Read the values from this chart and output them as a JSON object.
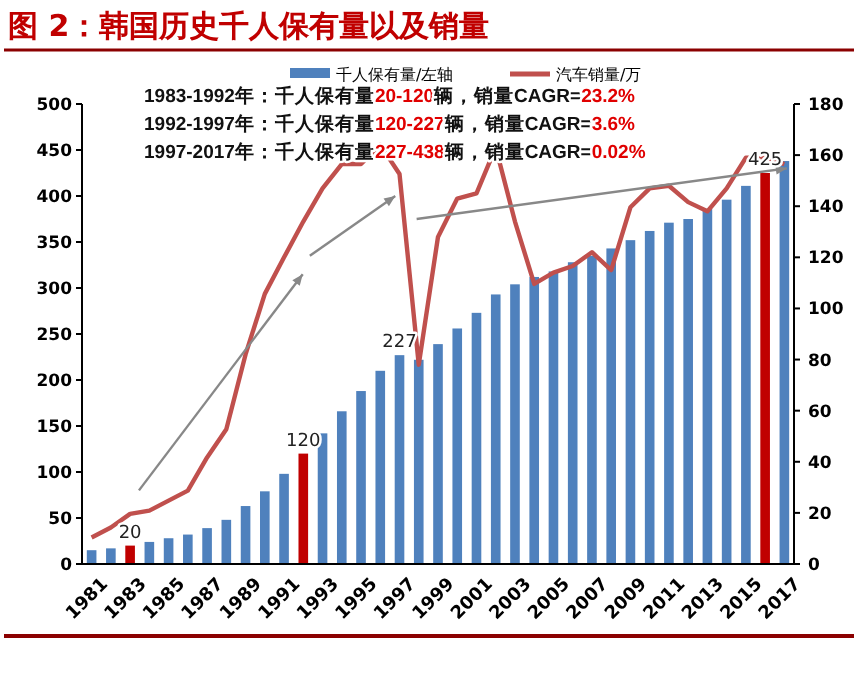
{
  "chart_data": {
    "type": "bar",
    "title": "图 2：韩国历史千人保有量以及销量",
    "categories": [
      "1981",
      null,
      "1983",
      null,
      "1985",
      null,
      "1987",
      null,
      "1989",
      null,
      "1991",
      null,
      "1993",
      null,
      "1995",
      null,
      "1997",
      null,
      "1999",
      null,
      "2001",
      null,
      "2003",
      null,
      "2005",
      null,
      "2007",
      null,
      "2009",
      null,
      "2011",
      null,
      "2013",
      null,
      "2015",
      null,
      "2017"
    ],
    "series": [
      {
        "name": "千人保有量/左轴",
        "color": "#4f81bd",
        "colors": [
          "#4f81bd",
          "#4f81bd",
          "#c00000",
          "#4f81bd",
          "#4f81bd",
          "#4f81bd",
          "#4f81bd",
          "#4f81bd",
          "#4f81bd",
          "#4f81bd",
          "#4f81bd",
          "#c00000",
          "#4f81bd",
          "#4f81bd",
          "#4f81bd",
          "#4f81bd",
          "#4f81bd",
          "#4f81bd",
          "#4f81bd",
          "#4f81bd",
          "#4f81bd",
          "#4f81bd",
          "#4f81bd",
          "#4f81bd",
          "#4f81bd",
          "#4f81bd",
          "#4f81bd",
          "#4f81bd",
          "#4f81bd",
          "#4f81bd",
          "#4f81bd",
          "#4f81bd",
          "#4f81bd",
          "#4f81bd",
          "#4f81bd",
          "#c00000",
          "#4f81bd"
        ],
        "values": [
          15,
          17,
          20,
          24,
          28,
          32,
          39,
          48,
          63,
          79,
          98,
          120,
          142,
          166,
          188,
          210,
          227,
          222,
          239,
          256,
          273,
          293,
          304,
          312,
          318,
          328,
          335,
          343,
          352,
          362,
          371,
          375,
          386,
          396,
          411,
          425,
          438
        ],
        "value_labels": [
          null,
          null,
          "20",
          null,
          null,
          null,
          null,
          null,
          null,
          null,
          null,
          "120",
          null,
          null,
          null,
          null,
          "227",
          null,
          null,
          null,
          null,
          null,
          null,
          null,
          null,
          null,
          null,
          null,
          null,
          null,
          null,
          null,
          null,
          null,
          null,
          "425",
          null
        ]
      },
      {
        "name": "汽车销量/万",
        "type": "line",
        "axis": "y2",
        "color": "#c0504d",
        "values": [
          10.4,
          14.3,
          19.6,
          20.9,
          24.8,
          28.7,
          41.7,
          52.7,
          82,
          105.7,
          120,
          134,
          147,
          156.5,
          156.5,
          164,
          152.6,
          78,
          128,
          143,
          145,
          163,
          134,
          109.6,
          114,
          116.6,
          122,
          115,
          139.6,
          147,
          148,
          141.6,
          138,
          147,
          159,
          159,
          156.5
        ]
      }
    ],
    "ylim": [
      0,
      500
    ],
    "yticks": [
      0,
      50,
      100,
      150,
      200,
      250,
      300,
      350,
      400,
      450,
      500
    ],
    "y2lim": [
      0,
      180
    ],
    "y2ticks": [
      0,
      20,
      40,
      60,
      80,
      100,
      120,
      140,
      160,
      180
    ],
    "legend": "top",
    "marker": "none",
    "line_style": "solid",
    "annotations": [
      "1983-1992年：千人保有量20-120辆，销量CAGR=23.2%",
      "1992-1997年：千人保有量120-227辆，销量CAGR=3.6%",
      "1997-2017年：千人保有量227-438辆，销量CAGR=0.02%"
    ]
  }
}
